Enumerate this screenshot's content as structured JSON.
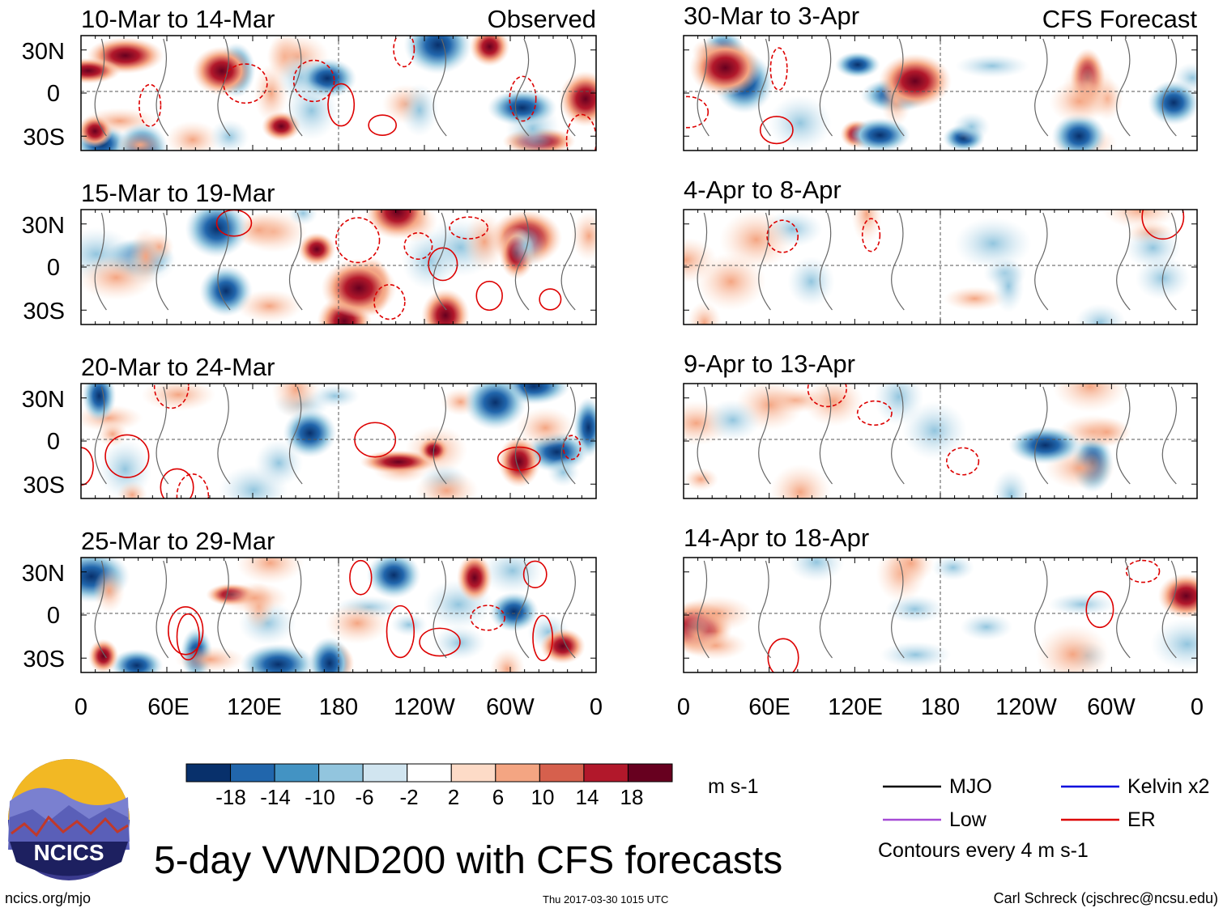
{
  "chart_data": {
    "type": "heatmap",
    "title": "5-day VWND200 with CFS forecasts",
    "variable": "VWND200",
    "units": "m s-1",
    "x_axis": {
      "ticks": [
        "0",
        "60E",
        "120E",
        "180",
        "120W",
        "60W",
        "0"
      ],
      "range_deg_lon": [
        0,
        360
      ]
    },
    "y_axis": {
      "ticks": [
        "30N",
        "0",
        "30S"
      ],
      "range_deg_lat": [
        -40,
        40
      ]
    },
    "colorbar": {
      "tick_labels": [
        "-18",
        "-14",
        "-10",
        "-6",
        "-2",
        "2",
        "6",
        "10",
        "14",
        "18"
      ],
      "colors": [
        "#08306b",
        "#2166ac",
        "#4393c3",
        "#92c5de",
        "#d1e5f0",
        "#ffffff",
        "#fddbc7",
        "#f4a582",
        "#d6604d",
        "#b2182b",
        "#67001f"
      ]
    },
    "panels": [
      {
        "column": "left",
        "period": "10-Mar to 14-Mar",
        "source": "Observed"
      },
      {
        "column": "left",
        "period": "15-Mar to 19-Mar",
        "source": ""
      },
      {
        "column": "left",
        "period": "20-Mar to 24-Mar",
        "source": ""
      },
      {
        "column": "left",
        "period": "25-Mar to 29-Mar",
        "source": ""
      },
      {
        "column": "right",
        "period": "30-Mar to 3-Apr",
        "source": "CFS Forecast"
      },
      {
        "column": "right",
        "period": "4-Apr to 8-Apr",
        "source": ""
      },
      {
        "column": "right",
        "period": "9-Apr to 13-Apr",
        "source": ""
      },
      {
        "column": "right",
        "period": "14-Apr to 18-Apr",
        "source": ""
      }
    ],
    "legend": [
      {
        "label": "MJO",
        "color": "#000000"
      },
      {
        "label": "Kelvin x2",
        "color": "#0000dd"
      },
      {
        "label": "Low",
        "color": "#a64bd6"
      },
      {
        "label": "ER",
        "color": "#dd0000"
      }
    ],
    "contour_note": "Contours every 4 m s-1"
  },
  "logo": {
    "text": "NCICS"
  },
  "footer": {
    "url": "ncics.org/mjo",
    "timestamp": "Thu 2017-03-30 1015 UTC",
    "author": "Carl Schreck (cjschrec@ncsu.edu)"
  }
}
